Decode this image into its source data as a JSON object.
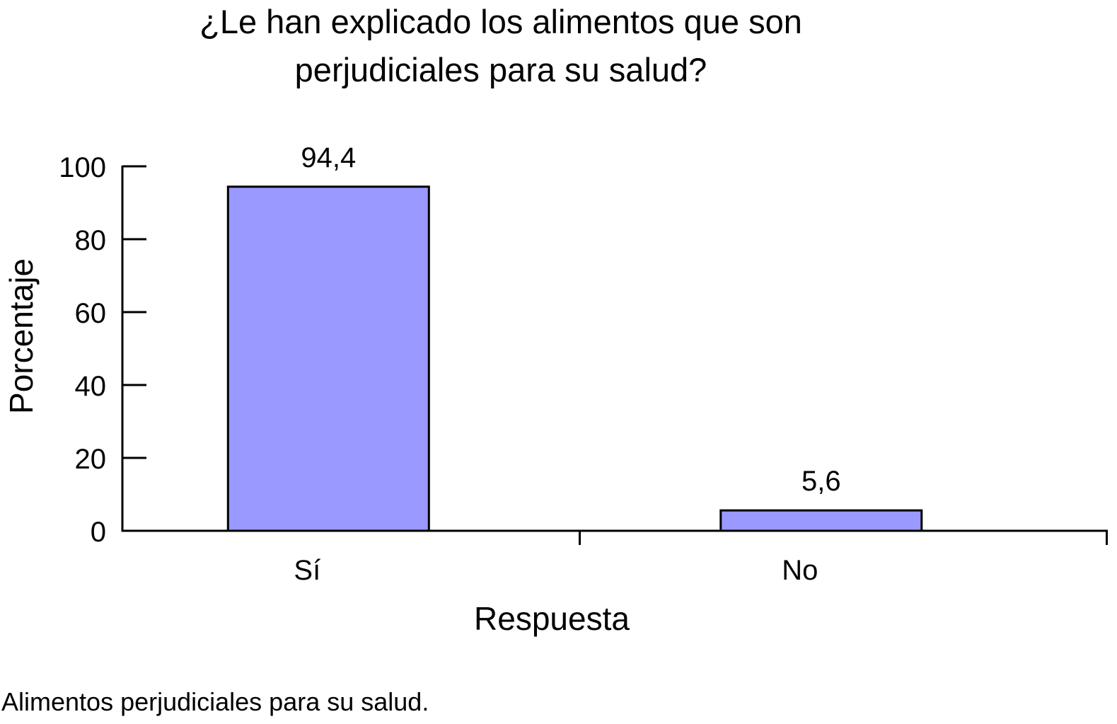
{
  "chart_data": {
    "type": "bar",
    "title_lines": [
      "¿Le han explicado los alimentos que son",
      "perjudiciales para su salud?"
    ],
    "categories": [
      "Sí",
      "No"
    ],
    "values": [
      94.4,
      5.6
    ],
    "data_labels": [
      "94,4",
      "5,6"
    ],
    "xlabel": "Respuesta",
    "ylabel": "Porcentaje",
    "ylim": [
      0,
      100
    ],
    "yticks": [
      0,
      20,
      40,
      60,
      80,
      100
    ],
    "bar_color": "#9999ff",
    "bar_edge_color": "#000000",
    "grid": false,
    "legend": "none"
  },
  "caption": "Alimentos perjudiciales para su salud."
}
